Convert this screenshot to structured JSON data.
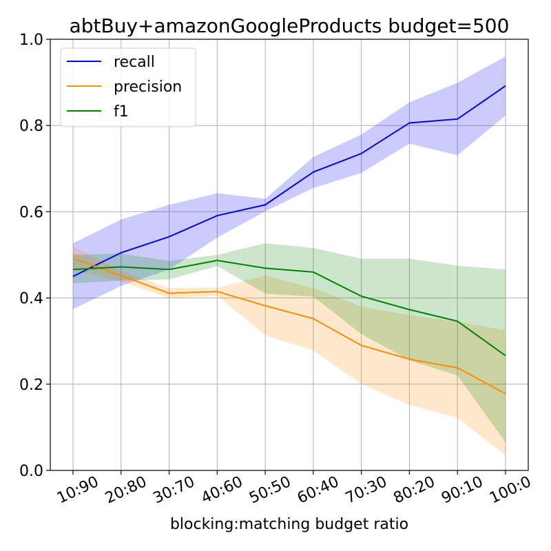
{
  "chart_data": {
    "type": "line",
    "title": "abtBuy+amazonGoogleProducts budget=500",
    "xlabel": "blocking:matching  budget ratio",
    "ylabel": "",
    "categories": [
      "10:90",
      "20:80",
      "30:70",
      "40:60",
      "50:50",
      "60:40",
      "70:30",
      "80:20",
      "90:10",
      "100:0"
    ],
    "ylim": [
      0.0,
      1.0
    ],
    "yticks": [
      "0.0",
      "0.2",
      "0.4",
      "0.6",
      "0.8",
      "1.0"
    ],
    "grid": true,
    "legend_position": "top-left",
    "series": [
      {
        "name": "recall",
        "color": "#0000ee",
        "values": [
          0.45,
          0.505,
          0.542,
          0.591,
          0.616,
          0.692,
          0.735,
          0.806,
          0.815,
          0.892
        ],
        "band_lower": [
          0.374,
          0.428,
          0.466,
          0.54,
          0.601,
          0.655,
          0.69,
          0.758,
          0.731,
          0.823
        ],
        "band_upper": [
          0.527,
          0.582,
          0.616,
          0.643,
          0.63,
          0.727,
          0.779,
          0.854,
          0.899,
          0.96
        ]
      },
      {
        "name": "precision",
        "color": "#ff8c00",
        "values": [
          0.492,
          0.452,
          0.411,
          0.415,
          0.382,
          0.352,
          0.29,
          0.258,
          0.238,
          0.178
        ],
        "band_lower": [
          0.465,
          0.438,
          0.4,
          0.405,
          0.313,
          0.278,
          0.2,
          0.152,
          0.122,
          0.034
        ],
        "band_upper": [
          0.52,
          0.462,
          0.423,
          0.424,
          0.452,
          0.423,
          0.38,
          0.36,
          0.345,
          0.325
        ]
      },
      {
        "name": "f1",
        "color": "#008000",
        "values": [
          0.466,
          0.472,
          0.466,
          0.487,
          0.469,
          0.46,
          0.404,
          0.373,
          0.346,
          0.266
        ],
        "band_lower": [
          0.434,
          0.44,
          0.443,
          0.474,
          0.41,
          0.403,
          0.316,
          0.255,
          0.22,
          0.065
        ],
        "band_upper": [
          0.5,
          0.503,
          0.486,
          0.5,
          0.527,
          0.516,
          0.491,
          0.491,
          0.475,
          0.466
        ]
      }
    ]
  }
}
